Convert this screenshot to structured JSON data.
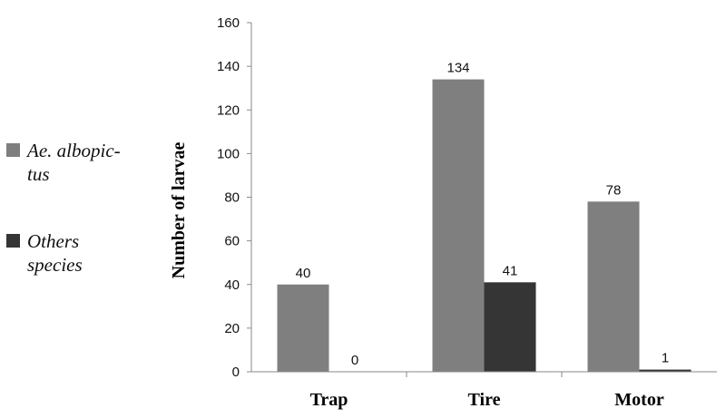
{
  "chart_data": {
    "type": "bar",
    "ylabel": "Number of larvae",
    "xlabel": "",
    "ylim": [
      0,
      160
    ],
    "yticks": [
      0,
      20,
      40,
      60,
      80,
      100,
      120,
      140,
      160
    ],
    "categories": [
      "Trap",
      "Tire",
      "Motor"
    ],
    "series": [
      {
        "name": "Ae. albopictus",
        "legend_lines": [
          "Ae. albopic-",
          "tus"
        ],
        "color": "#7f7f7f",
        "values": [
          40,
          134,
          78
        ]
      },
      {
        "name": "Others species",
        "legend_lines": [
          "Others",
          "species"
        ],
        "color": "#353535",
        "values": [
          0,
          41,
          1
        ]
      }
    ],
    "grid": false,
    "legend_position": "left"
  }
}
